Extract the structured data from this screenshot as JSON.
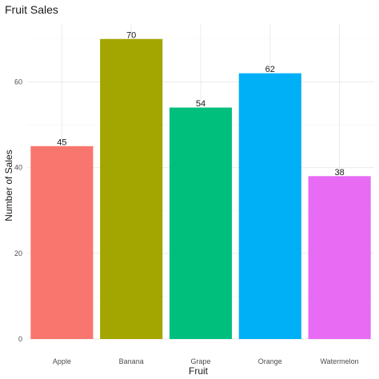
{
  "chart_data": {
    "type": "bar",
    "title": "Fruit Sales",
    "xlabel": "Fruit",
    "ylabel": "Number of Sales",
    "categories": [
      "Apple",
      "Banana",
      "Grape",
      "Orange",
      "Watermelon"
    ],
    "values": [
      45,
      70,
      54,
      62,
      38
    ],
    "colors": [
      "#F8766D",
      "#A3A500",
      "#00BF7D",
      "#00B0F6",
      "#E76BF3"
    ],
    "ylim": [
      0,
      73.5
    ],
    "yticks": [
      0,
      20,
      40,
      60
    ],
    "grid": true,
    "legend": "none"
  }
}
